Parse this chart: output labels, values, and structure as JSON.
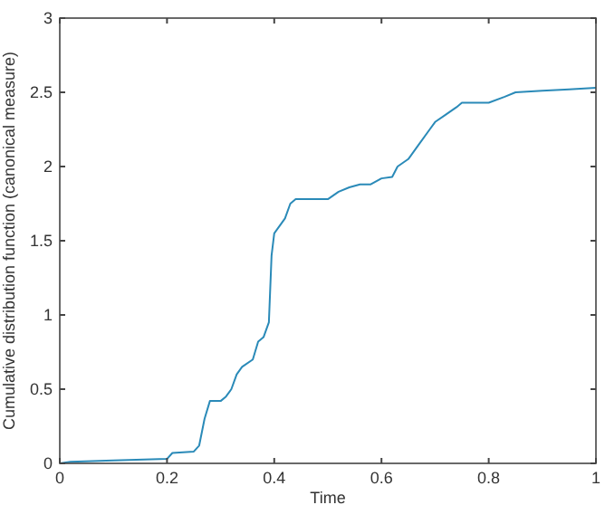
{
  "chart_data": {
    "type": "line",
    "xlabel": "Time",
    "ylabel": "Cumulative distribution function (canonical measure)",
    "xlim": [
      0,
      1
    ],
    "ylim": [
      0,
      3
    ],
    "xticks": [
      0,
      0.2,
      0.4,
      0.6,
      0.8,
      1
    ],
    "yticks": [
      0,
      0.5,
      1,
      1.5,
      2,
      2.5,
      3
    ],
    "grid": false,
    "series": [
      {
        "color": "#2a8ab8",
        "x": [
          0,
          0.02,
          0.1,
          0.2,
          0.21,
          0.25,
          0.26,
          0.27,
          0.28,
          0.3,
          0.31,
          0.32,
          0.33,
          0.34,
          0.36,
          0.37,
          0.38,
          0.39,
          0.395,
          0.4,
          0.41,
          0.42,
          0.43,
          0.44,
          0.5,
          0.52,
          0.54,
          0.56,
          0.58,
          0.6,
          0.62,
          0.63,
          0.65,
          0.66,
          0.67,
          0.69,
          0.7,
          0.72,
          0.74,
          0.75,
          0.8,
          0.83,
          0.85,
          0.9,
          0.95,
          1
        ],
        "values": [
          0,
          0.01,
          0.02,
          0.03,
          0.07,
          0.08,
          0.12,
          0.3,
          0.42,
          0.42,
          0.45,
          0.5,
          0.6,
          0.65,
          0.7,
          0.82,
          0.85,
          0.95,
          1.4,
          1.55,
          1.6,
          1.65,
          1.75,
          1.78,
          1.78,
          1.83,
          1.86,
          1.88,
          1.88,
          1.92,
          1.93,
          2,
          2.05,
          2.1,
          2.15,
          2.25,
          2.3,
          2.35,
          2.4,
          2.43,
          2.43,
          2.47,
          2.5,
          2.51,
          2.52,
          2.53
        ]
      }
    ]
  }
}
